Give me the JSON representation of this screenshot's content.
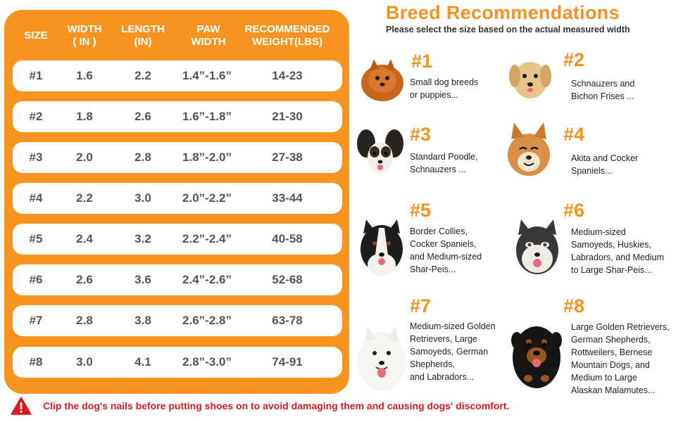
{
  "table": {
    "headers": [
      "SIZE",
      "WIDTH\n( IN )",
      "LENGTH\n(IN)",
      "PAW\nWIDTH",
      "RECOMMENDED\nWEIGHT(LBS)"
    ],
    "rows": [
      [
        "#1",
        "1.6",
        "2.2",
        "1.4”-1.6”",
        "14-23"
      ],
      [
        "#2",
        "1.8",
        "2.6",
        "1.6”-1.8”",
        "21-30"
      ],
      [
        "#3",
        "2.0",
        "2.8",
        "1.8”-2.0”",
        "27-38"
      ],
      [
        "#4",
        "2.2",
        "3.0",
        "2.0”-2.2”",
        "33-44"
      ],
      [
        "#5",
        "2.4",
        "3.2",
        "2.2”-2.4”",
        "40-58"
      ],
      [
        "#6",
        "2.6",
        "3.6",
        "2.4”-2.6”",
        "52-68"
      ],
      [
        "#7",
        "2.8",
        "3.8",
        "2.6”-2.8”",
        "63-78"
      ],
      [
        "#8",
        "3.0",
        "4.1",
        "2.8”-3.0”",
        "74-91"
      ]
    ]
  },
  "breeds": {
    "title": "Breed Recommendations",
    "subtitle": "Please select the size based on the actual measured width",
    "items": [
      {
        "number": "#1",
        "description": "Small dog breeds\nor puppies...",
        "dog_icon": "pomeranian-photo"
      },
      {
        "number": "#2",
        "description": "Schnauzers and\nBichon Frises ...",
        "dog_icon": "golden-puppy-photo"
      },
      {
        "number": "#3",
        "description": "Standard Poodle,\nSchnauzers ...",
        "dog_icon": "papillon-photo"
      },
      {
        "number": "#4",
        "description": "Akita and Cocker\nSpaniels...",
        "dog_icon": "shiba-photo"
      },
      {
        "number": "#5",
        "description": "Border Collies,\nCocker Spaniels,\nand Medium-sized\nShar-Peis...",
        "dog_icon": "border-collie-photo"
      },
      {
        "number": "#6",
        "description": "Medium-sized\nSamoyeds, Huskies,\nLabradors, and Medium\nto Large Shar-Peis...",
        "dog_icon": "husky-photo"
      },
      {
        "number": "#7",
        "description": "Medium-sized Golden\nRetrievers, Large\nSamoyeds, German\nShepherds,\nand Labradors...",
        "dog_icon": "samoyed-photo"
      },
      {
        "number": "#8",
        "description": "Large Golden Retrievers,\nGerman Shepherds,\nRottweilers, Bernese\nMountain Dogs, and\nMedium to Large\nAlaskan Malamutes...",
        "dog_icon": "rottweiler-photo"
      }
    ]
  },
  "warning": {
    "icon": "warning-triangle-icon",
    "text": "Clip the dog's nails before putting shoes on to avoid damaging them and causing dogs' discomfort."
  },
  "colors": {
    "accent": "#f7921e",
    "table_bg": "#f79420",
    "warning": "#d9191f"
  }
}
